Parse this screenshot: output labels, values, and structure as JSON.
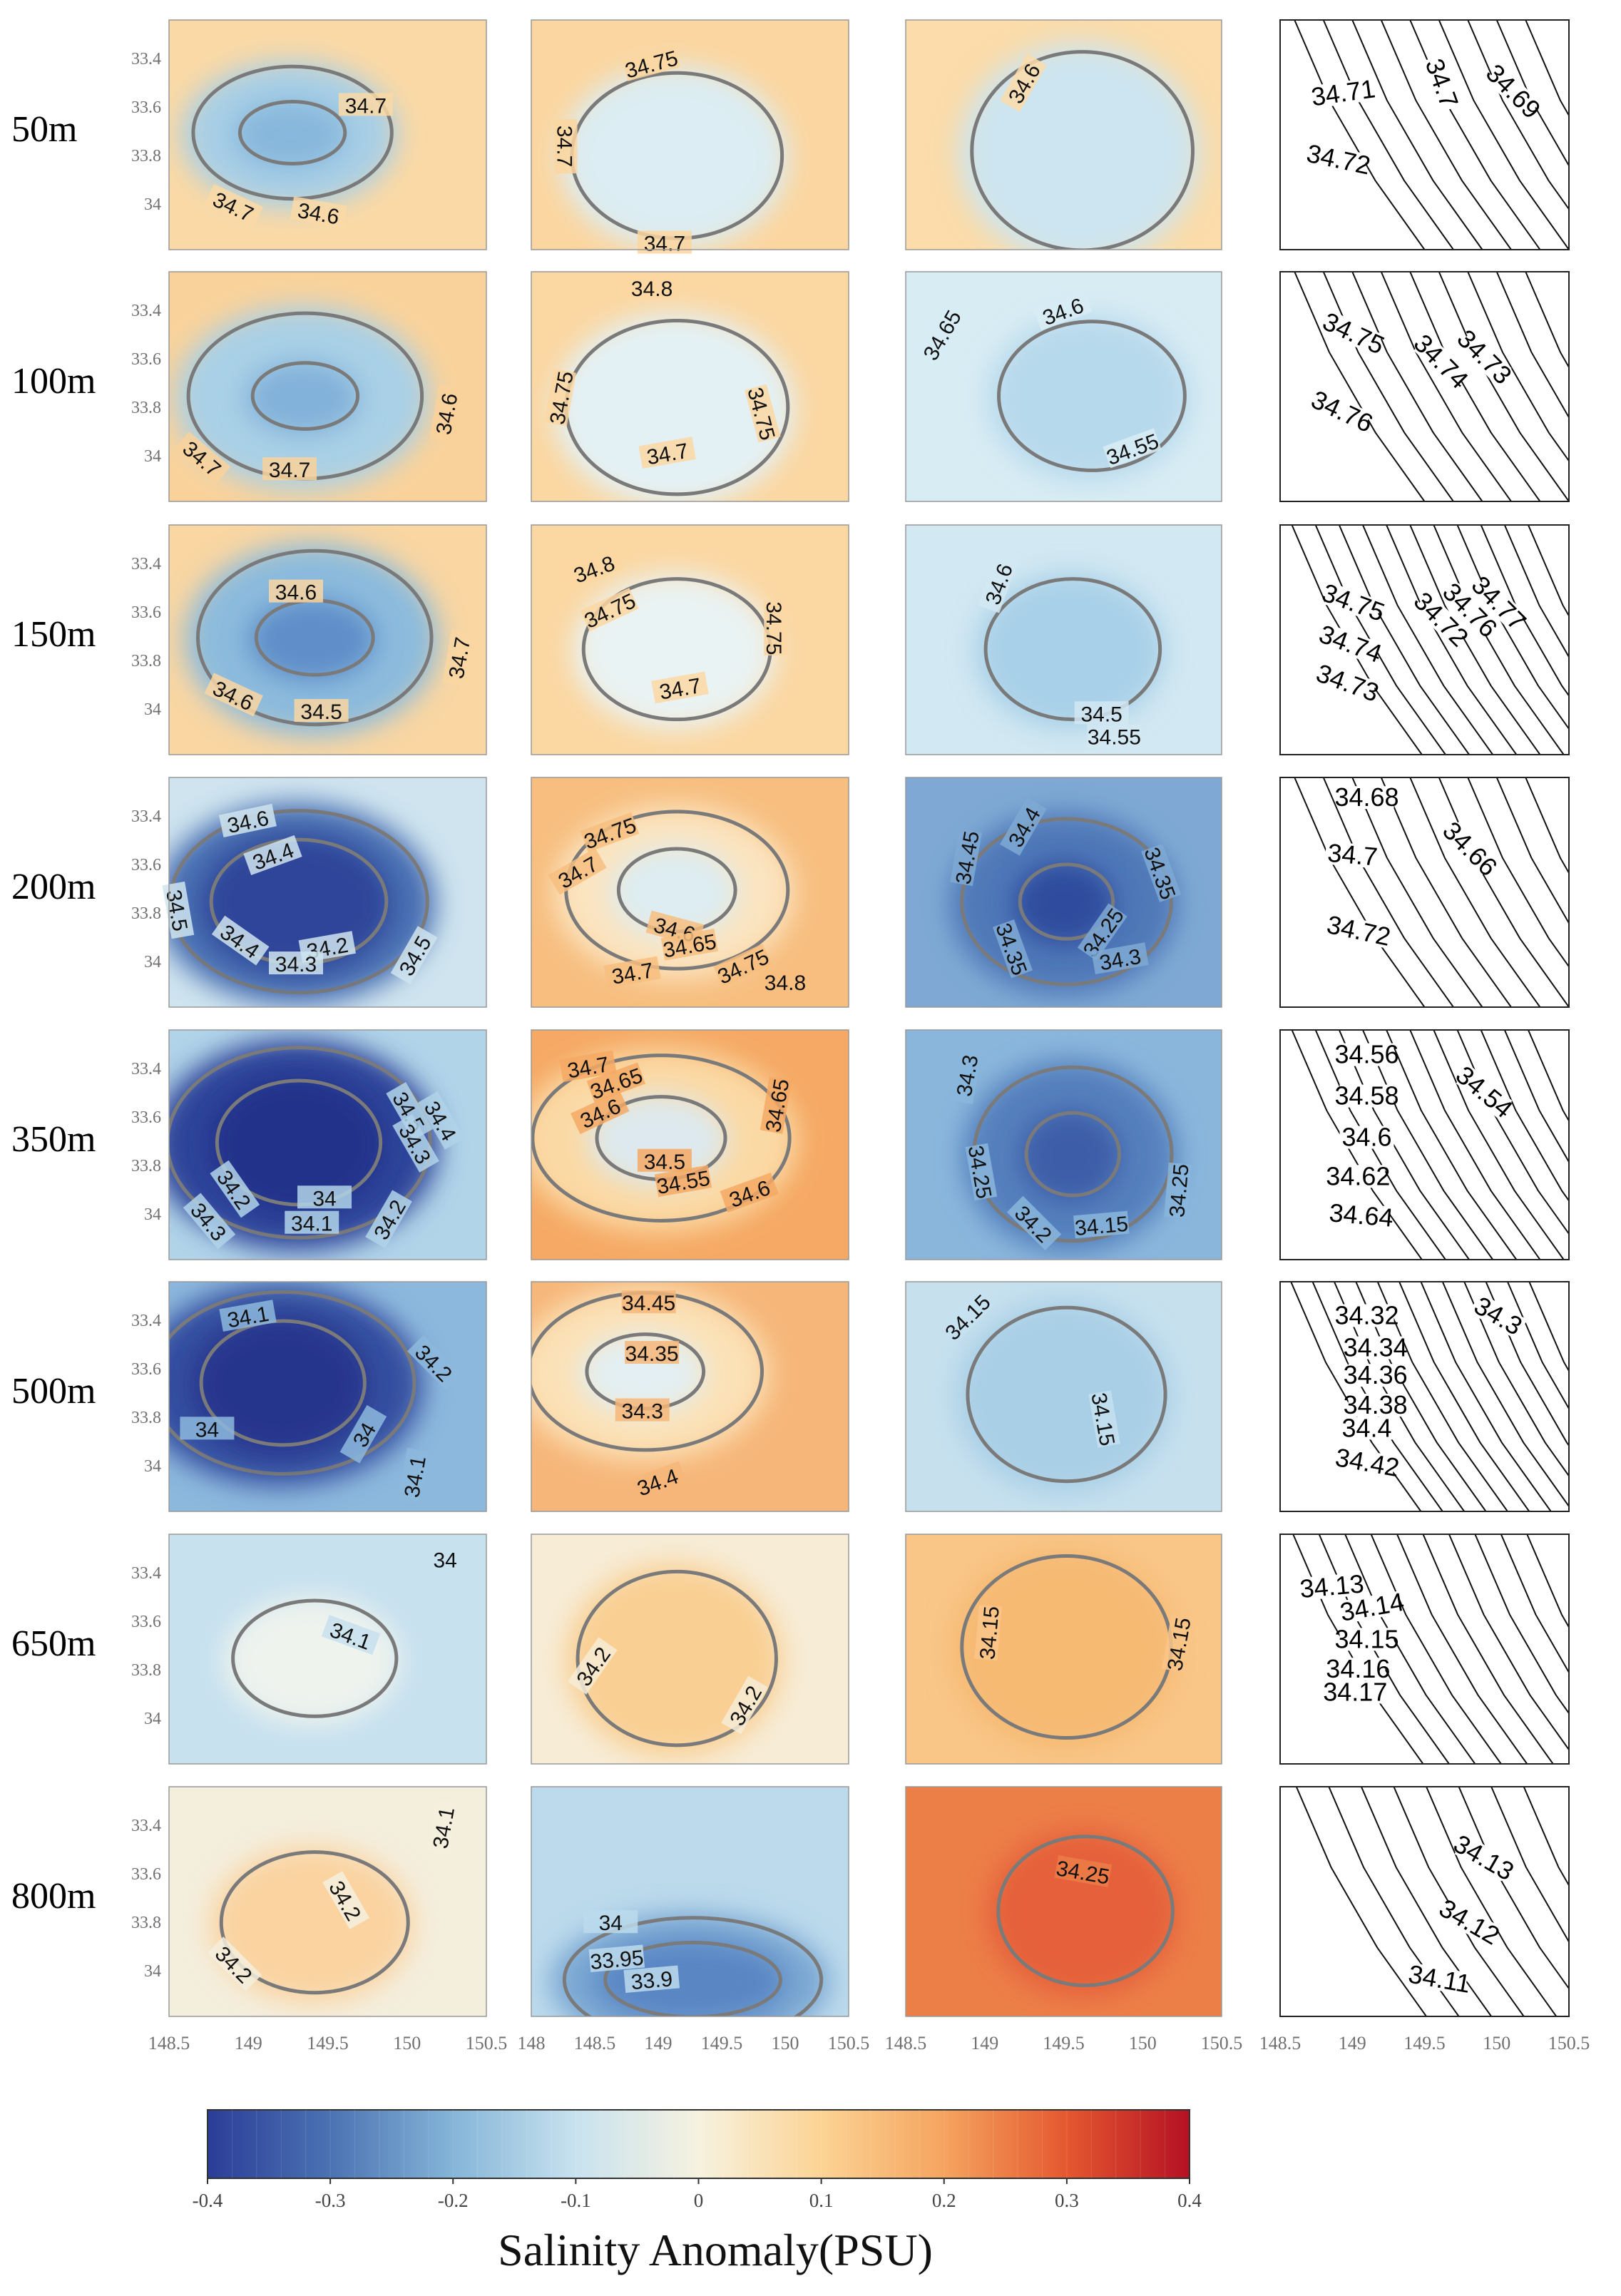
{
  "chart_data": {
    "type": "heatmap",
    "title": "",
    "colorbar": {
      "label": "Salinity Anomaly(PSU)",
      "ticks": [
        "-0.4",
        "-0.3",
        "-0.2",
        "-0.1",
        "0",
        "0.1",
        "0.2",
        "0.3",
        "0.4"
      ],
      "range": [
        -0.4,
        0.4
      ],
      "colors": [
        "#2b3d97",
        "#4b72b3",
        "#85b5d8",
        "#c8e2ef",
        "#f6f2df",
        "#fcd394",
        "#f5a45f",
        "#e4582f",
        "#b51024"
      ]
    },
    "depths": [
      "50m",
      "100m",
      "150m",
      "200m",
      "350m",
      "500m",
      "650m",
      "800m"
    ],
    "lat_ticks": [
      "33.4",
      "33.6",
      "33.8",
      "34"
    ],
    "columns": [
      {
        "x_ticks": [
          "148.5",
          "149",
          "149.5",
          "150",
          "150.5"
        ]
      },
      {
        "x_ticks": [
          "148",
          "148.5",
          "149",
          "149.5",
          "150",
          "150.5"
        ]
      },
      {
        "x_ticks": [
          "148.5",
          "149",
          "149.5",
          "150",
          "150.5"
        ]
      },
      {
        "x_ticks": [
          "148.5",
          "149",
          "149.5",
          "150",
          "150.5"
        ]
      }
    ],
    "panels": [
      [
        {
          "bg": "#fad9a6",
          "blobs": [
            {
              "color": "#a8cfe6",
              "rx": 0.34,
              "ry": 0.32
            },
            {
              "color": "#87b7dc",
              "rx": 0.18,
              "ry": 0.15
            }
          ],
          "contour_labels": [
            "34.7",
            "34.7",
            "34.6"
          ]
        },
        {
          "bg": "#fbd6a0",
          "blobs": [
            {
              "color": "#dcedf3",
              "rx": 0.36,
              "ry": 0.4
            }
          ],
          "contour_labels": [
            "34.75",
            "34.7",
            "34.7"
          ]
        },
        {
          "bg": "#fbdcaa",
          "blobs": [
            {
              "color": "#cde5f0",
              "rx": 0.38,
              "ry": 0.48
            }
          ],
          "contour_labels": [
            "34.6"
          ]
        },
        {
          "bg": "#ffffff",
          "contour_labels": [
            "34.71",
            "34.7",
            "34.69",
            "34.72"
          ]
        }
      ],
      [
        {
          "bg": "#f9d29b",
          "blobs": [
            {
              "color": "#a9d0e6",
              "rx": 0.4,
              "ry": 0.4
            },
            {
              "color": "#82b1d9",
              "rx": 0.18,
              "ry": 0.16
            }
          ],
          "contour_labels": [
            "34.7",
            "34.7",
            "34.6"
          ]
        },
        {
          "bg": "#fbd7a2",
          "blobs": [
            {
              "color": "#e3f1f5",
              "rx": 0.38,
              "ry": 0.42
            }
          ],
          "contour_labels": [
            "34.8",
            "34.75",
            "34.75",
            "34.7"
          ]
        },
        {
          "bg": "#d8ecf4",
          "blobs": [
            {
              "color": "#b7d9ec",
              "rx": 0.32,
              "ry": 0.36
            }
          ],
          "contour_labels": [
            "34.65",
            "34.6",
            "34.55"
          ]
        },
        {
          "bg": "#ffffff",
          "contour_labels": [
            "34.75",
            "34.74",
            "34.73",
            "34.76"
          ]
        }
      ],
      [
        {
          "bg": "#f9d6a2",
          "blobs": [
            {
              "color": "#8cbbdd",
              "rx": 0.4,
              "ry": 0.42
            },
            {
              "color": "#5e8ec9",
              "rx": 0.2,
              "ry": 0.18
            }
          ],
          "contour_labels": [
            "34.6",
            "34.6",
            "34.5",
            "34.7"
          ]
        },
        {
          "bg": "#fbd7a2",
          "blobs": [
            {
              "color": "#eaf3f3",
              "rx": 0.32,
              "ry": 0.34
            }
          ],
          "contour_labels": [
            "34.8",
            "34.75",
            "34.75",
            "34.7"
          ]
        },
        {
          "bg": "#d2e8f2",
          "blobs": [
            {
              "color": "#a8d0e8",
              "rx": 0.3,
              "ry": 0.34
            }
          ],
          "contour_labels": [
            "34.6",
            "34.5",
            "34.55"
          ]
        },
        {
          "bg": "#ffffff",
          "contour_labels": [
            "34.75",
            "34.74",
            "34.73",
            "34.72",
            "34.76",
            "34.77"
          ]
        }
      ],
      [
        {
          "bg": "#cfe4ef",
          "blobs": [
            {
              "color": "#4a6fb2",
              "rx": 0.44,
              "ry": 0.44
            },
            {
              "color": "#2e4599",
              "rx": 0.3,
              "ry": 0.3
            }
          ],
          "contour_labels": [
            "34.6",
            "34.4",
            "34.5",
            "34.4",
            "34.2",
            "34.3",
            "34.5"
          ]
        },
        {
          "bg": "#f7be7f",
          "blobs": [
            {
              "color": "#fbe4c0",
              "rx": 0.38,
              "ry": 0.38
            },
            {
              "color": "#ddedf2",
              "rx": 0.2,
              "ry": 0.2
            }
          ],
          "contour_labels": [
            "34.75",
            "34.7",
            "34.6",
            "34.65",
            "34.7",
            "34.75",
            "34.8"
          ]
        },
        {
          "bg": "#7fa9d4",
          "blobs": [
            {
              "color": "#4f78b8",
              "rx": 0.36,
              "ry": 0.4
            },
            {
              "color": "#2f4b9d",
              "rx": 0.16,
              "ry": 0.18
            }
          ],
          "contour_labels": [
            "34.45",
            "34.4",
            "34.35",
            "34.35",
            "34.25",
            "34.3"
          ]
        },
        {
          "bg": "#ffffff",
          "contour_labels": [
            "34.68",
            "34.66",
            "34.7",
            "34.72"
          ]
        }
      ],
      [
        {
          "bg": "#b2d4e9",
          "blobs": [
            {
              "color": "#2f459a",
              "rx": 0.45,
              "ry": 0.46
            },
            {
              "color": "#23308a",
              "rx": 0.28,
              "ry": 0.3
            }
          ],
          "contour_labels": [
            "34.5",
            "34.4",
            "34.3",
            "34.2",
            "34.3",
            "34",
            "34.1",
            "34.2"
          ]
        },
        {
          "bg": "#f5a964",
          "blobs": [
            {
              "color": "#fbd9a4",
              "rx": 0.44,
              "ry": 0.4
            },
            {
              "color": "#dde9ee",
              "rx": 0.22,
              "ry": 0.2
            }
          ],
          "contour_labels": [
            "34.7",
            "34.65",
            "34.6",
            "34.5",
            "34.55",
            "34.6",
            "34.65"
          ]
        },
        {
          "bg": "#8ab6dc",
          "blobs": [
            {
              "color": "#5580bd",
              "rx": 0.34,
              "ry": 0.42
            },
            {
              "color": "#3c5da8",
              "rx": 0.16,
              "ry": 0.2
            }
          ],
          "contour_labels": [
            "34.3",
            "34.25",
            "34.2",
            "34.15",
            "34.25"
          ]
        },
        {
          "bg": "#ffffff",
          "contour_labels": [
            "34.56",
            "34.54",
            "34.58",
            "34.6",
            "34.62",
            "34.64"
          ]
        }
      ],
      [
        {
          "bg": "#8db8dd",
          "blobs": [
            {
              "color": "#344fa0",
              "rx": 0.45,
              "ry": 0.44
            },
            {
              "color": "#26358c",
              "rx": 0.28,
              "ry": 0.3
            }
          ],
          "contour_labels": [
            "34.1",
            "34.2",
            "34",
            "34",
            "34.1"
          ]
        },
        {
          "bg": "#f6b679",
          "blobs": [
            {
              "color": "#fbe1b6",
              "rx": 0.4,
              "ry": 0.38
            },
            {
              "color": "#e3eff2",
              "rx": 0.2,
              "ry": 0.18
            }
          ],
          "contour_labels": [
            "34.45",
            "34.35",
            "34.3",
            "34.4"
          ]
        },
        {
          "bg": "#c6e0ee",
          "blobs": [
            {
              "color": "#a9cfe6",
              "rx": 0.34,
              "ry": 0.42
            }
          ],
          "contour_labels": [
            "34.15",
            "34.15"
          ]
        },
        {
          "bg": "#ffffff",
          "contour_labels": [
            "34.32",
            "34.3",
            "34.34",
            "34.36",
            "34.38",
            "34.4",
            "34.42"
          ]
        }
      ],
      [
        {
          "bg": "#c7e1ef",
          "blobs": [
            {
              "color": "#eef3ee",
              "rx": 0.28,
              "ry": 0.28
            }
          ],
          "contour_labels": [
            "34",
            "34.1"
          ]
        },
        {
          "bg": "#f7ecd6",
          "blobs": [
            {
              "color": "#f9cf93",
              "rx": 0.34,
              "ry": 0.42
            }
          ],
          "contour_labels": [
            "34.2",
            "34.2"
          ]
        },
        {
          "bg": "#f9c688",
          "blobs": [
            {
              "color": "#f6ba73",
              "rx": 0.36,
              "ry": 0.44
            }
          ],
          "contour_labels": [
            "34.15",
            "34.15"
          ]
        },
        {
          "bg": "#ffffff",
          "contour_labels": [
            "34.13",
            "34.14",
            "34.15",
            "34.16",
            "34.17"
          ]
        }
      ],
      [
        {
          "bg": "#f4eedd",
          "blobs": [
            {
              "color": "#fad3a0",
              "rx": 0.32,
              "ry": 0.34
            }
          ],
          "contour_labels": [
            "34.1",
            "34.2",
            "34.2"
          ]
        },
        {
          "bg": "#bcdaec",
          "blobs": [
            {
              "color": "#7aa7d3",
              "rx": 0.44,
              "ry": 0.3
            },
            {
              "color": "#5a86c4",
              "rx": 0.3,
              "ry": 0.18
            }
          ],
          "contour_labels": [
            "34",
            "33.95",
            "33.9"
          ]
        },
        {
          "bg": "#ec7e48",
          "blobs": [
            {
              "color": "#e5603a",
              "rx": 0.3,
              "ry": 0.36
            }
          ],
          "contour_labels": [
            "34.25"
          ]
        },
        {
          "bg": "#ffffff",
          "contour_labels": [
            "34.13",
            "34.12",
            "34.11"
          ]
        }
      ]
    ]
  }
}
